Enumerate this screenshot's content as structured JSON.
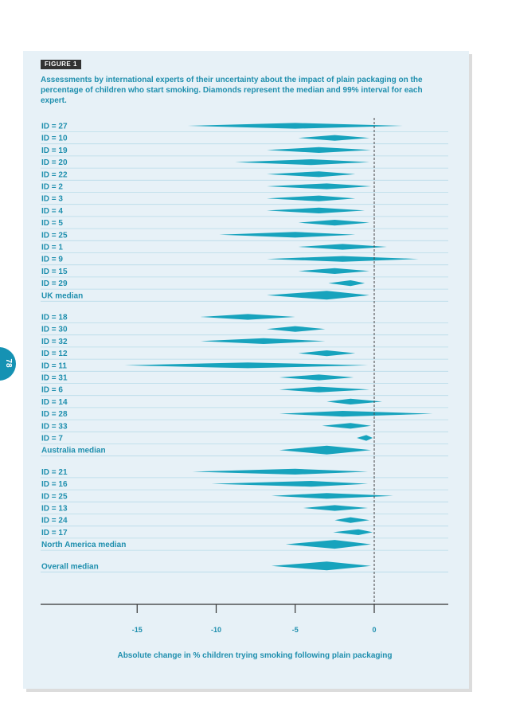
{
  "page_number": "78",
  "figure_label": "FIGURE 1",
  "caption": "Assessments by international experts of their uncertainty about the impact of plain packaging on the percentage of children who start smoking. Diamonds represent the median and 99% interval for each expert.",
  "colors": {
    "diamond": "#17a3bd",
    "text": "#1f8fae",
    "panel": "#e7f1f7",
    "row_line": "#b7dbe8"
  },
  "chart_data": {
    "type": "interval",
    "xlabel": "Absolute change in % children trying smoking following plain packaging",
    "xlim": [
      -20.5,
      4.5
    ],
    "xticks": [
      -15,
      -10,
      -5,
      0
    ],
    "xtick_labels": [
      "-15",
      "-10",
      "-5",
      "0"
    ],
    "reference_line": 0,
    "groups": [
      {
        "rows": [
          {
            "label": "ID = 27",
            "low": -11.8,
            "median": -5.0,
            "high": 1.8
          },
          {
            "label": "ID = 10",
            "low": -4.8,
            "median": -2.5,
            "high": -0.3
          },
          {
            "label": "ID = 19",
            "low": -6.8,
            "median": -3.5,
            "high": -0.2
          },
          {
            "label": "ID = 20",
            "low": -8.8,
            "median": -4.0,
            "high": -0.3
          },
          {
            "label": "ID = 22",
            "low": -6.8,
            "median": -3.5,
            "high": -1.2
          },
          {
            "label": "ID = 2",
            "low": -6.8,
            "median": -3.0,
            "high": -0.2
          },
          {
            "label": "ID = 3",
            "low": -6.8,
            "median": -3.5,
            "high": -1.2
          },
          {
            "label": "ID = 4",
            "low": -6.8,
            "median": -3.5,
            "high": -0.6
          },
          {
            "label": "ID = 5",
            "low": -4.8,
            "median": -2.5,
            "high": -0.3
          },
          {
            "label": "ID = 25",
            "low": -9.8,
            "median": -5.0,
            "high": -1.2
          },
          {
            "label": "ID = 1",
            "low": -4.8,
            "median": -2.0,
            "high": 0.8
          },
          {
            "label": "ID = 9",
            "low": -6.8,
            "median": -2.0,
            "high": 2.8
          },
          {
            "label": "ID = 15",
            "low": -4.8,
            "median": -2.5,
            "high": -0.3
          },
          {
            "label": "ID = 29",
            "low": -2.9,
            "median": -1.5,
            "high": -0.6
          },
          {
            "label": "UK median",
            "low": -6.8,
            "median": -3.0,
            "high": -0.3
          }
        ]
      },
      {
        "rows": [
          {
            "label": "ID = 18",
            "low": -11.0,
            "median": -8.0,
            "high": -5.0
          },
          {
            "label": "ID = 30",
            "low": -6.8,
            "median": -5.0,
            "high": -3.1
          },
          {
            "label": "ID = 32",
            "low": -11.0,
            "median": -7.0,
            "high": -3.1
          },
          {
            "label": "ID = 12",
            "low": -4.8,
            "median": -3.0,
            "high": -1.2
          },
          {
            "label": "ID = 11",
            "low": -15.8,
            "median": -8.0,
            "high": -0.4
          },
          {
            "label": "ID = 31",
            "low": -6.0,
            "median": -3.5,
            "high": -1.3
          },
          {
            "label": "ID = 6",
            "low": -6.0,
            "median": -3.5,
            "high": -0.3
          },
          {
            "label": "ID = 14",
            "low": -3.0,
            "median": -1.5,
            "high": 0.5
          },
          {
            "label": "ID = 28",
            "low": -6.0,
            "median": -2.0,
            "high": 3.7
          },
          {
            "label": "ID = 33",
            "low": -3.3,
            "median": -1.5,
            "high": -0.2
          },
          {
            "label": "ID = 7",
            "low": -1.1,
            "median": -0.5,
            "high": -0.1
          },
          {
            "label": "Australia median",
            "low": -6.0,
            "median": -3.0,
            "high": -0.2
          }
        ]
      },
      {
        "rows": [
          {
            "label": "ID = 21",
            "low": -11.5,
            "median": -5.0,
            "high": -0.4
          },
          {
            "label": "ID = 16",
            "low": -10.3,
            "median": -4.0,
            "high": -0.4
          },
          {
            "label": "ID = 25",
            "low": -6.5,
            "median": -3.0,
            "high": 1.2
          },
          {
            "label": "ID = 13",
            "low": -4.5,
            "median": -2.5,
            "high": -0.4
          },
          {
            "label": "ID = 24",
            "low": -2.5,
            "median": -1.5,
            "high": -0.3
          },
          {
            "label": "ID = 17",
            "low": -2.6,
            "median": -1.0,
            "high": -0.1
          },
          {
            "label": "North America median",
            "low": -5.6,
            "median": -2.5,
            "high": -0.2
          }
        ]
      },
      {
        "rows": [
          {
            "label": "Overall median",
            "low": -6.5,
            "median": -3.0,
            "high": -0.2
          }
        ]
      }
    ]
  }
}
